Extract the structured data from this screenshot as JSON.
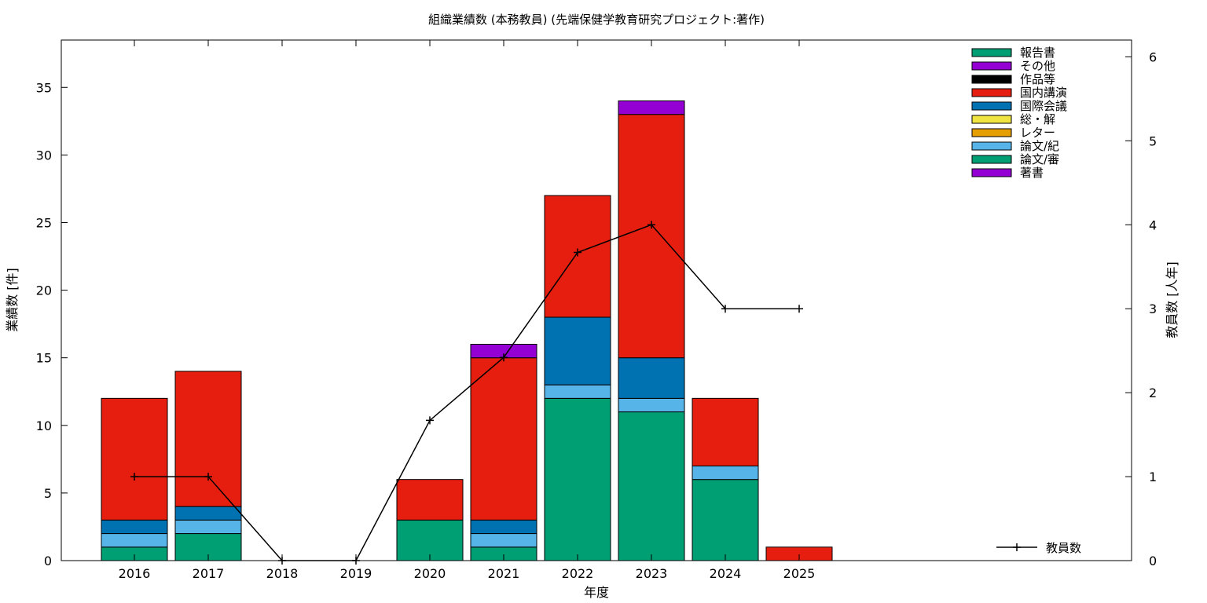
{
  "chart_data": {
    "type": "bar",
    "stacked": true,
    "title": "組織業績数 (本務教員) (先端保健学教育研究プロジェクト:著作)",
    "xlabel": "年度",
    "ylabel": "業績数 [件]",
    "y2label": "教員数 [人年]",
    "categories": [
      "2016",
      "2017",
      "2018",
      "2019",
      "2020",
      "2021",
      "2022",
      "2023",
      "2024",
      "2025"
    ],
    "ylim": [
      0,
      38.5
    ],
    "yticks": [
      0,
      5,
      10,
      15,
      20,
      25,
      30,
      35
    ],
    "y2lim": [
      0,
      6.2
    ],
    "y2ticks": [
      0,
      1,
      2,
      3,
      4,
      5,
      6
    ],
    "grid": false,
    "legend_position": "top-right",
    "series": [
      {
        "name": "著書",
        "color": "#9400d3",
        "values": [
          0,
          0,
          0,
          0,
          0,
          0,
          0,
          0,
          0,
          0
        ]
      },
      {
        "name": "論文/審",
        "color": "#009e73",
        "values": [
          1,
          2,
          0,
          0,
          3,
          1,
          12,
          11,
          6,
          0
        ]
      },
      {
        "name": "論文/紀",
        "color": "#56b4e9",
        "values": [
          1,
          1,
          0,
          0,
          0,
          1,
          1,
          1,
          1,
          0
        ]
      },
      {
        "name": "レター",
        "color": "#e69f00",
        "values": [
          0,
          0,
          0,
          0,
          0,
          0,
          0,
          0,
          0,
          0
        ]
      },
      {
        "name": "総・解",
        "color": "#f0e442",
        "values": [
          0,
          0,
          0,
          0,
          0,
          0,
          0,
          0,
          0,
          0
        ]
      },
      {
        "name": "国際会議",
        "color": "#0072b2",
        "values": [
          1,
          1,
          0,
          0,
          0,
          1,
          5,
          3,
          0,
          0
        ]
      },
      {
        "name": "国内講演",
        "color": "#e51e10",
        "values": [
          9,
          10,
          0,
          0,
          3,
          12,
          9,
          18,
          5,
          1
        ]
      },
      {
        "name": "作品等",
        "color": "#000000",
        "values": [
          0,
          0,
          0,
          0,
          0,
          0,
          0,
          0,
          0,
          0
        ]
      },
      {
        "name": "その他",
        "color": "#9400d3",
        "values": [
          0,
          0,
          0,
          0,
          0,
          1,
          0,
          1,
          0,
          0
        ]
      },
      {
        "name": "報告書",
        "color": "#009e73",
        "values": [
          0,
          0,
          0,
          0,
          0,
          0,
          0,
          0,
          0,
          0
        ]
      }
    ],
    "line_series": {
      "name": "教員数",
      "color": "#000000",
      "axis": "y2",
      "values": [
        1,
        1,
        0,
        0,
        1.67,
        2.42,
        3.67,
        4.0,
        3.0,
        3.0
      ]
    }
  }
}
